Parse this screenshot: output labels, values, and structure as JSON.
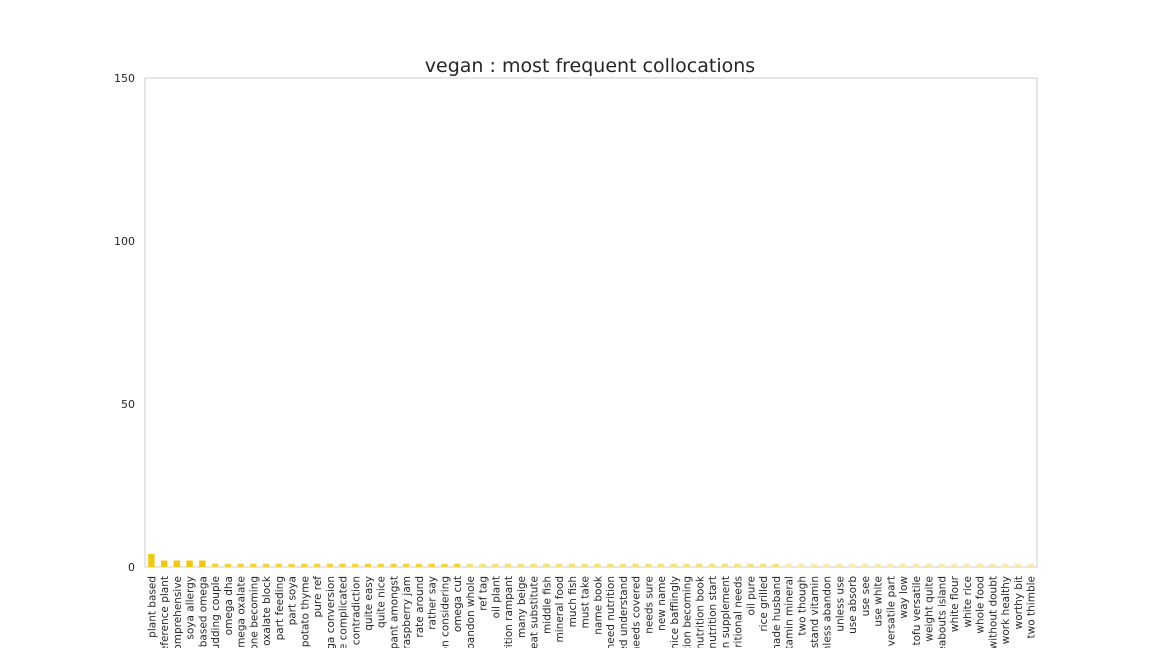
{
  "chart_data": {
    "type": "bar",
    "title": "vegan : most frequent collocations",
    "xlabel": "",
    "ylabel": "",
    "ylim": [
      0,
      150
    ],
    "yticks": [
      0,
      50,
      100,
      150
    ],
    "grid": false,
    "legend": "none",
    "bar_colors": [
      "#f2c80f",
      "#f4d23c",
      "#f7e27a",
      "#f9ebb0"
    ],
    "categories": [
      "plant based",
      "reference plant",
      "comprehensive",
      "soya allergy",
      "based omega",
      "pudding couple",
      "omega dha",
      "omega oxalate",
      "one becoming",
      "oxalate block",
      "part feeding",
      "part soya",
      "potato thyme",
      "pure ref",
      "mega conversion",
      "te complicated",
      "e contradiction",
      "quite easy",
      "quite nice",
      "mpant amongst",
      "raspberry jam",
      "rate around",
      "rather say",
      "on considering",
      "omega cut",
      "abandon whole",
      "ref tag",
      "oil plant",
      "trition rampant",
      "many beige",
      "neat substitute",
      "middle fish",
      "mineral food",
      "much fish",
      "must take",
      "name book",
      "need nutrition",
      "ed understand",
      "needs covered",
      "needs sure",
      "new name",
      "nice bafflingly",
      "ition becoming",
      "nutrition book",
      "nutrition start",
      "on supplement",
      "tritional needs",
      "oil pure",
      "rice grilled",
      "made husband",
      "itamin mineral",
      "two though",
      "erstand vitamin",
      "nless abandon",
      "unless use",
      "use absorb",
      "use see",
      "use white",
      "versatile part",
      "way low",
      "tofu versatile",
      "weight quite",
      "eabouts island",
      "white flour",
      "white rice",
      "whole food",
      "without doubt",
      "work healthy",
      "worthy bit",
      "two thimble"
    ],
    "values": [
      4,
      2,
      2,
      2,
      2,
      1,
      1,
      1,
      1,
      1,
      1,
      1,
      1,
      1,
      1,
      1,
      1,
      1,
      1,
      1,
      1,
      1,
      1,
      1,
      1,
      1,
      1,
      1,
      1,
      1,
      1,
      1,
      1,
      1,
      1,
      1,
      1,
      1,
      1,
      1,
      1,
      1,
      1,
      1,
      1,
      1,
      1,
      1,
      1,
      1,
      1,
      1,
      1,
      1,
      1,
      1,
      1,
      1,
      1,
      1,
      1,
      1,
      1,
      1,
      1,
      1,
      1,
      1,
      1,
      1
    ]
  }
}
